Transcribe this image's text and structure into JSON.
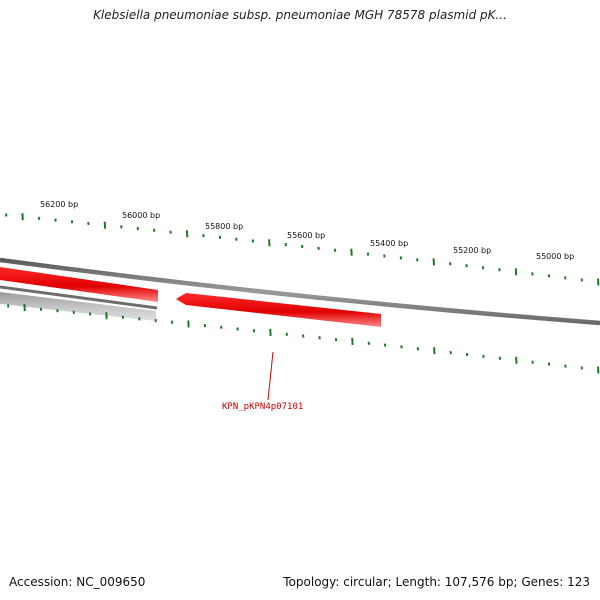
{
  "title": "Klebsiella pneumoniae subsp. pneumoniae MGH 78578 plasmid pK...",
  "scale_labels": [
    "56200 bp",
    "56000 bp",
    "55800 bp",
    "55600 bp",
    "55400 bp",
    "55200 bp",
    "55000 bp"
  ],
  "gene_label": "KPN_pKPN4p07101",
  "footer": {
    "accession": "Accession: NC_009650",
    "summary": "Topology: circular; Length: 107,576 bp; Genes: 123"
  },
  "colors": {
    "tick": "#1f7a1f",
    "backbone": "#7a7a7a",
    "gene_forward": "#ee0000",
    "gene_gray": "#b8b8b8",
    "label": "#cc0000"
  }
}
